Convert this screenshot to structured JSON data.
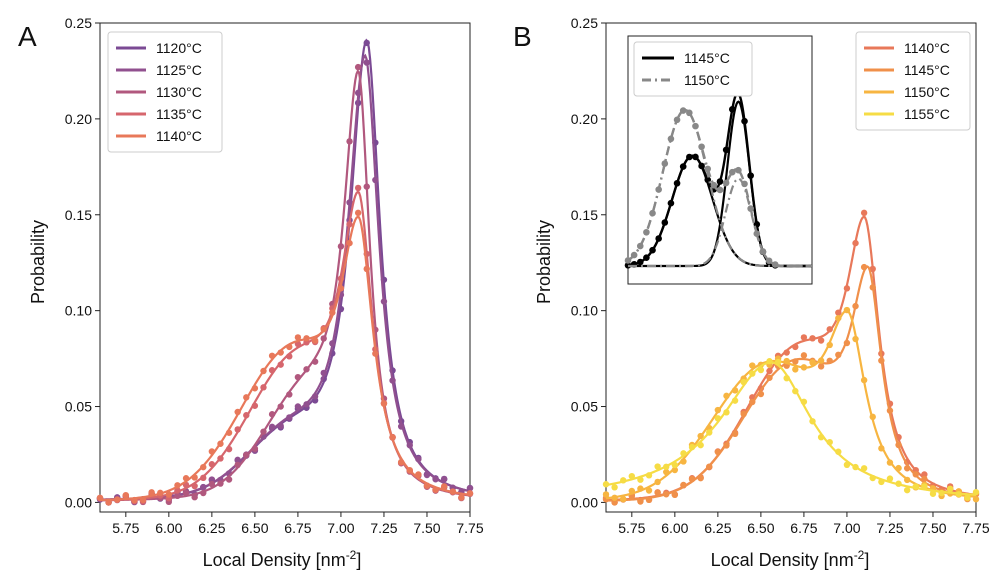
{
  "panels": [
    {
      "letter": "A",
      "xlabel": "Local Density [nm",
      "xlabel_sup": "-2",
      "xlabel_end": "]",
      "ylabel": "Probability",
      "legend": [
        "1120°C",
        "1125°C",
        "1130°C",
        "1135°C",
        "1140°C"
      ]
    },
    {
      "letter": "B",
      "xlabel": "Local Density [nm",
      "xlabel_sup": "-2",
      "xlabel_end": "]",
      "ylabel": "Probability",
      "legend": [
        "1140°C",
        "1145°C",
        "1150°C",
        "1155°C"
      ],
      "inset_legend": [
        "1145°C",
        "1150°C"
      ]
    }
  ],
  "colors": {
    "1120": "#7b4a94",
    "1125": "#91508f",
    "1130": "#b1587e",
    "1135": "#d6666d",
    "1140": "#e8785a",
    "1145": "#f0904a",
    "1150": "#f7b541",
    "1155": "#f6dc45",
    "inset_1145": "#000000",
    "inset_1150": "#888888"
  },
  "chart_data": [
    {
      "type": "line",
      "panel": "A",
      "xlabel": "Local Density [nm-2]",
      "ylabel": "Probability",
      "xlim": [
        5.6,
        7.75
      ],
      "ylim": [
        -0.005,
        0.25
      ],
      "xticks": [
        "5.75",
        "6.00",
        "6.25",
        "6.50",
        "6.75",
        "7.00",
        "7.25",
        "7.50",
        "7.75"
      ],
      "yticks": [
        "0.00",
        "0.05",
        "0.10",
        "0.15",
        "0.20",
        "0.25"
      ],
      "series": [
        {
          "name": "1120°C",
          "peak": 7.15,
          "height": 0.241,
          "width": 0.16,
          "left_tail": 0.03,
          "left_tail_center": 6.7,
          "left_tail_width": 0.35
        },
        {
          "name": "1125°C",
          "peak": 7.14,
          "height": 0.233,
          "width": 0.165,
          "left_tail": 0.03,
          "left_tail_center": 6.7,
          "left_tail_width": 0.35
        },
        {
          "name": "1130°C",
          "peak": 7.1,
          "height": 0.225,
          "width": 0.14,
          "left_tail": 0.05,
          "left_tail_center": 6.8,
          "left_tail_width": 0.35
        },
        {
          "name": "1135°C",
          "peak": 7.1,
          "height": 0.162,
          "width": 0.17,
          "left_tail": 0.07,
          "left_tail_center": 6.75,
          "left_tail_width": 0.4
        },
        {
          "name": "1140°C",
          "peak": 7.1,
          "height": 0.149,
          "width": 0.18,
          "left_tail": 0.075,
          "left_tail_center": 6.72,
          "left_tail_width": 0.42
        }
      ]
    },
    {
      "type": "line",
      "panel": "B",
      "xlabel": "Local Density [nm-2]",
      "ylabel": "Probability",
      "xlim": [
        5.6,
        7.75
      ],
      "ylim": [
        -0.005,
        0.25
      ],
      "xticks": [
        "5.75",
        "6.00",
        "6.25",
        "6.50",
        "6.75",
        "7.00",
        "7.25",
        "7.50",
        "7.75"
      ],
      "yticks": [
        "0.00",
        "0.05",
        "0.10",
        "0.15",
        "0.20",
        "0.25"
      ],
      "series": [
        {
          "name": "1140°C",
          "peak": 7.1,
          "height": 0.149,
          "width": 0.18,
          "left_tail": 0.075,
          "left_tail_center": 6.72,
          "left_tail_width": 0.42
        },
        {
          "name": "1145°C",
          "peak": 7.12,
          "height": 0.123,
          "width": 0.17,
          "left_tail": 0.07,
          "left_tail_center": 6.7,
          "left_tail_width": 0.42
        },
        {
          "name": "1150°C",
          "peak": 7.0,
          "height": 0.1,
          "width": 0.22,
          "left_tail": 0.07,
          "left_tail_center": 6.55,
          "left_tail_width": 0.45
        },
        {
          "name": "1155°C",
          "peak": 6.56,
          "height": 0.073,
          "width": 0.48,
          "left_tail": 0.0,
          "left_tail_center": 6.5,
          "left_tail_width": 0.4
        }
      ],
      "inset": {
        "series": [
          {
            "name": "1145°C",
            "components": [
              {
                "center": 0.35,
                "height": 0.53,
                "width": 0.11
              },
              {
                "center": 0.6,
                "height": 0.79,
                "width": 0.06
              }
            ]
          },
          {
            "name": "1150°C",
            "components": [
              {
                "center": 0.31,
                "height": 0.75,
                "width": 0.12
              },
              {
                "center": 0.6,
                "height": 0.42,
                "width": 0.07
              }
            ]
          }
        ]
      }
    }
  ]
}
